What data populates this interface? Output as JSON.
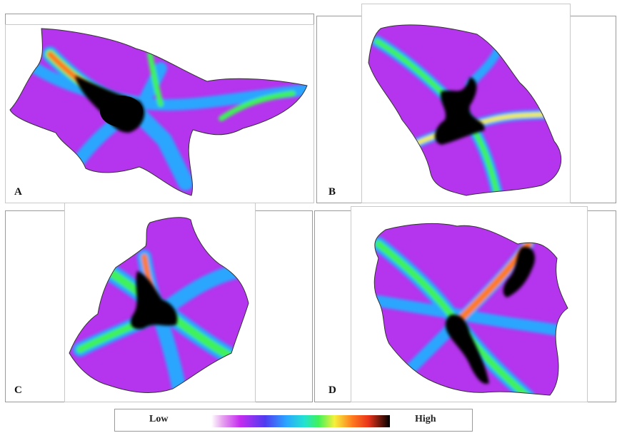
{
  "panels": [
    {
      "id": "A",
      "label": "A",
      "map_name": "heatmap-region-a"
    },
    {
      "id": "B",
      "label": "B",
      "map_name": "heatmap-region-b"
    },
    {
      "id": "C",
      "label": "C",
      "map_name": "heatmap-region-c"
    },
    {
      "id": "D",
      "label": "D",
      "map_name": "heatmap-region-d"
    }
  ],
  "legend": {
    "low_label": "Low",
    "high_label": "High",
    "colors": [
      "#ffffff",
      "#c62cf0",
      "#4f3bf0",
      "#2aa6ff",
      "#22e2d2",
      "#3ff25a",
      "#f6f03c",
      "#ff7a1e",
      "#e8341a",
      "#000000"
    ]
  },
  "colors": {
    "background_fill": "#b534ee",
    "corridor_low": "#3b7bf0",
    "corridor_mid": "#3ff25a",
    "corridor_high": "#ff7a1e",
    "core": "#000000"
  }
}
